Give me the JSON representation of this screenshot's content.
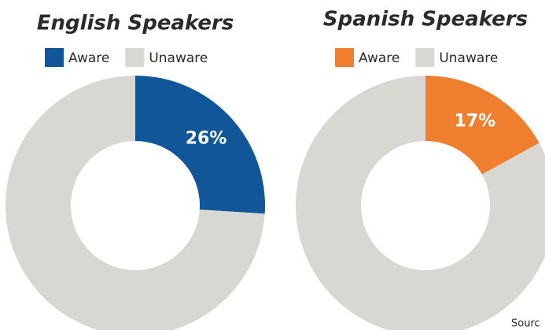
{
  "chart_data": [
    {
      "type": "donut",
      "title": "English Speakers",
      "categories": [
        "Aware",
        "Unaware"
      ],
      "values": [
        26,
        74
      ],
      "value_labels": [
        "26%",
        null
      ],
      "colors": [
        "#12569a",
        "#d9d7d2"
      ],
      "legend": "top"
    },
    {
      "type": "donut",
      "title": "Spanish Speakers",
      "categories": [
        "Aware",
        "Unaware"
      ],
      "values": [
        17,
        83
      ],
      "value_labels": [
        "17%",
        null
      ],
      "colors": [
        "#ef7f2f",
        "#d9d7d2"
      ],
      "legend": "top"
    }
  ],
  "source": "Sourc"
}
